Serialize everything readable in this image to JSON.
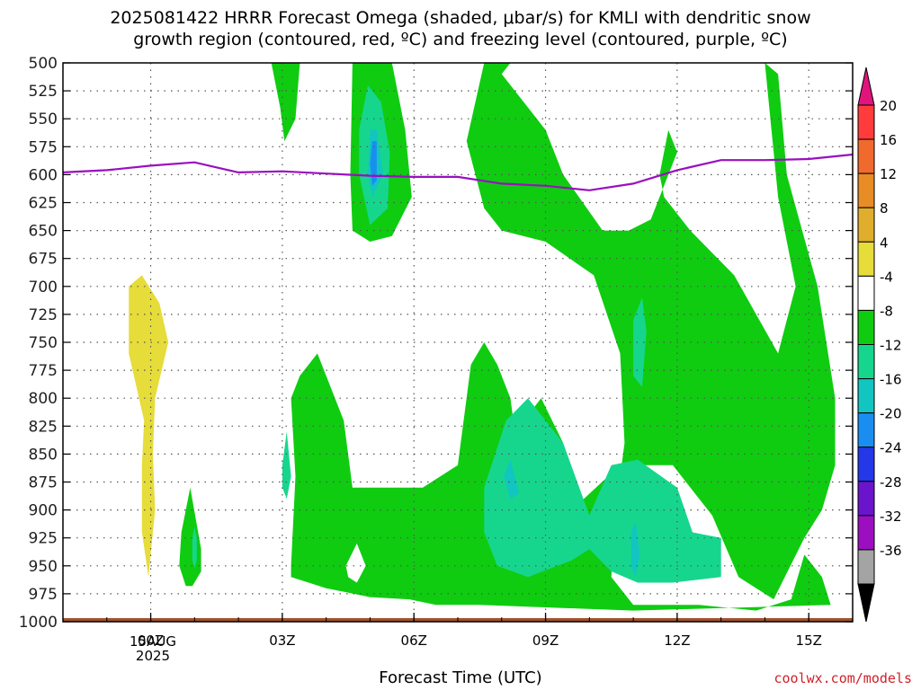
{
  "title_line1": "2025081422 HRRR Forecast Omega (shaded, μbar/s) for KMLI with dendritic snow",
  "title_line2": "growth region (contoured, red, ºC) and freezing level (contoured, purple, ºC)",
  "credit": "coolwx.com/models",
  "date_lines": [
    "15AUG",
    "2025"
  ],
  "chart_data": {
    "type": "heatmap",
    "xlabel": "Forecast Time (UTC)",
    "x_ticks": [
      {
        "hour": 0,
        "label": "00Z"
      },
      {
        "hour": 3,
        "label": "03Z"
      },
      {
        "hour": 6,
        "label": "06Z"
      },
      {
        "hour": 9,
        "label": "09Z"
      },
      {
        "hour": 12,
        "label": "12Z"
      },
      {
        "hour": 15,
        "label": "15Z"
      }
    ],
    "x_range_hours": [
      -2,
      16
    ],
    "y_levels_mb": [
      500,
      525,
      550,
      575,
      600,
      625,
      650,
      675,
      700,
      725,
      750,
      775,
      800,
      825,
      850,
      875,
      900,
      925,
      950,
      975,
      1000
    ],
    "y_range_mb": [
      500,
      1000
    ],
    "grid": true,
    "colorbar": {
      "labels": [
        "20",
        "16",
        "12",
        "8",
        "4",
        "-4",
        "-8",
        "-12",
        "-16",
        "-20",
        "-24",
        "-28",
        "-32",
        "-36"
      ],
      "colors": [
        "#ff3b3b",
        "#f06a2e",
        "#e88c26",
        "#e0ae2c",
        "#e6dc3a",
        "#ffffff",
        "#0fcc11",
        "#16d68e",
        "#12c5c0",
        "#1a8ef0",
        "#2438e8",
        "#6a14cc",
        "#9c0fc0",
        "#a4a4a4"
      ],
      "top_arrow": "#e0147c",
      "bottom_arrow": "#000000"
    },
    "freezing_level": {
      "color": "#9a0fc0",
      "points": [
        [
          -2,
          598
        ],
        [
          -1,
          596
        ],
        [
          0,
          592
        ],
        [
          1,
          589
        ],
        [
          2,
          598
        ],
        [
          3,
          597
        ],
        [
          4,
          599
        ],
        [
          5,
          601
        ],
        [
          6,
          602
        ],
        [
          7,
          602
        ],
        [
          8,
          608
        ],
        [
          9,
          610
        ],
        [
          10,
          614
        ],
        [
          11,
          608
        ],
        [
          12,
          596
        ],
        [
          13,
          587
        ],
        [
          14,
          587
        ],
        [
          15,
          586
        ],
        [
          16,
          582
        ]
      ]
    },
    "omega_regions": [
      {
        "value_class": "4 to 8",
        "color": "#e6dc3a",
        "points": [
          [
            -0.5,
            700
          ],
          [
            -0.2,
            690
          ],
          [
            0.2,
            715
          ],
          [
            0.4,
            750
          ],
          [
            0.1,
            800
          ],
          [
            0.05,
            850
          ],
          [
            0.1,
            900
          ],
          [
            -0.05,
            960
          ],
          [
            -0.2,
            920
          ],
          [
            -0.2,
            860
          ],
          [
            -0.15,
            820
          ],
          [
            -0.5,
            760
          ],
          [
            -0.5,
            720
          ]
        ]
      },
      {
        "value_class": "-4 to -8",
        "color": "#0fcc11",
        "points": [
          [
            0.65,
            950
          ],
          [
            0.7,
            920
          ],
          [
            0.9,
            880
          ],
          [
            1.15,
            935
          ],
          [
            1.15,
            955
          ],
          [
            0.95,
            968
          ],
          [
            0.8,
            968
          ]
        ]
      },
      {
        "value_class": "-8 to -12",
        "color": "#16d68e",
        "points": [
          [
            0.95,
            925
          ],
          [
            1.0,
            915
          ],
          [
            1.05,
            925
          ],
          [
            1.05,
            945
          ],
          [
            1.0,
            952
          ],
          [
            0.95,
            945
          ]
        ]
      },
      {
        "value_class": "-4 to -8",
        "color": "#0fcc11",
        "points": [
          [
            2.75,
            500
          ],
          [
            3.4,
            500
          ],
          [
            3.3,
            550
          ],
          [
            3.05,
            570
          ],
          [
            2.95,
            540
          ]
        ]
      },
      {
        "value_class": "-4 to -8",
        "color": "#0fcc11",
        "points": [
          [
            4.6,
            500
          ],
          [
            5.5,
            500
          ],
          [
            5.8,
            560
          ],
          [
            5.95,
            620
          ],
          [
            5.5,
            655
          ],
          [
            5.0,
            660
          ],
          [
            4.6,
            650
          ],
          [
            4.55,
            600
          ]
        ]
      },
      {
        "value_class": "-8 to -12",
        "color": "#16d68e",
        "points": [
          [
            4.95,
            520
          ],
          [
            5.25,
            535
          ],
          [
            5.45,
            580
          ],
          [
            5.4,
            630
          ],
          [
            5.0,
            645
          ],
          [
            4.75,
            600
          ],
          [
            4.75,
            560
          ]
        ]
      },
      {
        "value_class": "-12 to -16",
        "color": "#12c5c0",
        "points": [
          [
            5.0,
            560
          ],
          [
            5.15,
            560
          ],
          [
            5.3,
            600
          ],
          [
            5.05,
            620
          ],
          [
            4.95,
            600
          ]
        ]
      },
      {
        "value_class": "-16 to -20",
        "color": "#1a8ef0",
        "points": [
          [
            5.05,
            570
          ],
          [
            5.15,
            570
          ],
          [
            5.15,
            605
          ],
          [
            5.05,
            610
          ],
          [
            5.0,
            590
          ]
        ]
      },
      {
        "value_class": "-4 to -8",
        "color": "#0fcc11",
        "points": [
          [
            3.2,
            950
          ],
          [
            3.3,
            870
          ],
          [
            3.2,
            800
          ],
          [
            3.4,
            780
          ],
          [
            3.8,
            760
          ],
          [
            4.4,
            820
          ],
          [
            4.6,
            880
          ],
          [
            6.2,
            880
          ],
          [
            7.0,
            860
          ],
          [
            7.3,
            770
          ],
          [
            7.6,
            750
          ],
          [
            7.9,
            770
          ],
          [
            8.2,
            800
          ],
          [
            8.3,
            830
          ],
          [
            8.9,
            800
          ],
          [
            9.4,
            840
          ],
          [
            9.6,
            900
          ],
          [
            10.7,
            860
          ],
          [
            11.9,
            860
          ],
          [
            12.8,
            905
          ],
          [
            13.4,
            960
          ],
          [
            14.2,
            980
          ],
          [
            14.9,
            925
          ],
          [
            15.3,
            900
          ],
          [
            15.6,
            860
          ],
          [
            15.6,
            800
          ],
          [
            15.2,
            700
          ],
          [
            14.5,
            600
          ],
          [
            14.3,
            510
          ],
          [
            14.0,
            500
          ],
          [
            14.1,
            540
          ],
          [
            14.3,
            620
          ],
          [
            14.7,
            700
          ],
          [
            14.3,
            760
          ],
          [
            13.3,
            690
          ],
          [
            12.3,
            650
          ],
          [
            11.7,
            620
          ],
          [
            11.6,
            600
          ],
          [
            11.8,
            560
          ],
          [
            12.0,
            580
          ],
          [
            11.4,
            640
          ],
          [
            10.9,
            650
          ],
          [
            10.3,
            650
          ],
          [
            9.4,
            600
          ],
          [
            9.0,
            560
          ],
          [
            8.0,
            510
          ],
          [
            8.2,
            500
          ],
          [
            7.6,
            500
          ],
          [
            7.2,
            570
          ],
          [
            7.6,
            630
          ],
          [
            8.0,
            650
          ],
          [
            9.0,
            660
          ],
          [
            10.1,
            690
          ],
          [
            10.7,
            760
          ],
          [
            10.8,
            840
          ],
          [
            10.6,
            900
          ],
          [
            10.5,
            960
          ],
          [
            11.0,
            985
          ],
          [
            12.5,
            985
          ],
          [
            13.8,
            990
          ],
          [
            14.6,
            980
          ],
          [
            14.9,
            940
          ],
          [
            15.3,
            960
          ],
          [
            15.5,
            985
          ],
          [
            11.0,
            990
          ],
          [
            7.5,
            985
          ],
          [
            6.5,
            985
          ],
          [
            5.9,
            980
          ],
          [
            5.0,
            978
          ],
          [
            4.0,
            970
          ],
          [
            3.2,
            960
          ]
        ]
      },
      {
        "value_class": "-8 to -12",
        "color": "#16d68e",
        "points": [
          [
            3.0,
            860
          ],
          [
            3.1,
            830
          ],
          [
            3.2,
            870
          ],
          [
            3.1,
            890
          ],
          [
            3.0,
            880
          ]
        ]
      },
      {
        "value_class": "-8 to -12",
        "color": "#16d68e",
        "points": [
          [
            7.6,
            880
          ],
          [
            8.1,
            820
          ],
          [
            8.6,
            800
          ],
          [
            9.4,
            840
          ],
          [
            10.0,
            905
          ],
          [
            10.5,
            860
          ],
          [
            11.1,
            855
          ],
          [
            12.0,
            880
          ],
          [
            12.35,
            920
          ],
          [
            13.0,
            925
          ],
          [
            13.0,
            960
          ],
          [
            11.9,
            965
          ],
          [
            11.1,
            965
          ],
          [
            10.5,
            955
          ],
          [
            10.0,
            935
          ],
          [
            9.6,
            945
          ],
          [
            8.6,
            960
          ],
          [
            7.9,
            950
          ],
          [
            7.6,
            920
          ]
        ]
      },
      {
        "value_class": "-12 to -16",
        "color": "#12c5c0",
        "points": [
          [
            8.05,
            870
          ],
          [
            8.2,
            855
          ],
          [
            8.4,
            885
          ],
          [
            8.2,
            890
          ]
        ]
      },
      {
        "value_class": "-12 to -16",
        "color": "#12c5c0",
        "points": [
          [
            10.95,
            920
          ],
          [
            11.05,
            910
          ],
          [
            11.15,
            940
          ],
          [
            11.05,
            960
          ],
          [
            10.95,
            950
          ]
        ]
      },
      {
        "value_class": "-8 to -12",
        "color": "#16d68e",
        "points": [
          [
            11.0,
            730
          ],
          [
            11.2,
            710
          ],
          [
            11.3,
            740
          ],
          [
            11.2,
            790
          ],
          [
            11.0,
            780
          ]
        ]
      }
    ],
    "white_holes": [
      {
        "points": [
          [
            4.45,
            950
          ],
          [
            4.7,
            930
          ],
          [
            4.9,
            950
          ],
          [
            4.7,
            965
          ],
          [
            4.5,
            960
          ]
        ]
      }
    ],
    "snow_growth_contour": {
      "color": "#d01f28",
      "present": false
    },
    "ground": {
      "color": "#a0522d"
    }
  }
}
